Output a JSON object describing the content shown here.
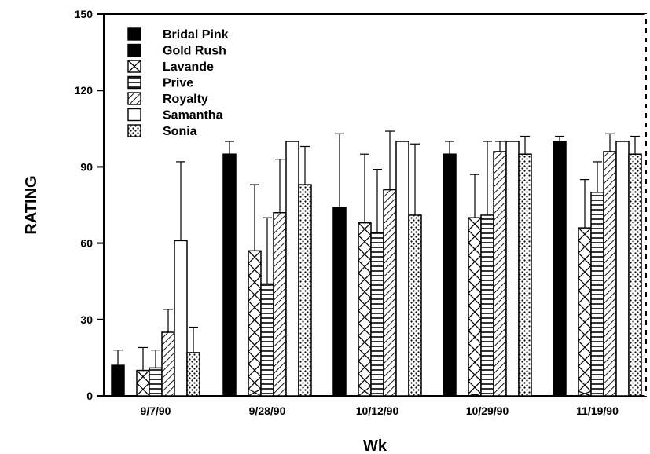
{
  "chart_data": {
    "type": "bar",
    "xlabel": "Wk",
    "ylabel": "RATING",
    "ylim": [
      0,
      150
    ],
    "yticks": [
      0,
      30,
      60,
      90,
      120,
      150
    ],
    "legend_position": "top-left",
    "categories": [
      "9/7/90",
      "9/28/90",
      "10/12/90",
      "10/29/90",
      "11/19/90"
    ],
    "series": [
      {
        "name": "Bridal Pink",
        "pattern": "solid",
        "values": [
          12,
          95,
          74,
          95,
          100
        ],
        "errors": [
          6,
          5,
          29,
          5,
          2
        ]
      },
      {
        "name": "Gold Rush",
        "pattern": "solid",
        "values": [
          null,
          null,
          null,
          null,
          null
        ],
        "errors": [
          null,
          null,
          null,
          null,
          null
        ]
      },
      {
        "name": "Lavande",
        "pattern": "crosshatch",
        "values": [
          10,
          57,
          68,
          70,
          66
        ],
        "errors": [
          9,
          26,
          27,
          17,
          19
        ]
      },
      {
        "name": "Prive",
        "pattern": "horizontal",
        "values": [
          11,
          44,
          64,
          71,
          80
        ],
        "errors": [
          7,
          26,
          25,
          29,
          12
        ]
      },
      {
        "name": "Royalty",
        "pattern": "diagonal",
        "values": [
          25,
          72,
          81,
          96,
          96
        ],
        "errors": [
          9,
          21,
          23,
          4,
          7
        ]
      },
      {
        "name": "Samantha",
        "pattern": "open",
        "values": [
          61,
          100,
          100,
          100,
          100
        ],
        "errors": [
          31,
          0,
          0,
          0,
          0
        ]
      },
      {
        "name": "Sonia",
        "pattern": "dotted",
        "values": [
          17,
          83,
          71,
          95,
          95
        ],
        "errors": [
          10,
          15,
          28,
          7,
          7
        ]
      }
    ]
  }
}
